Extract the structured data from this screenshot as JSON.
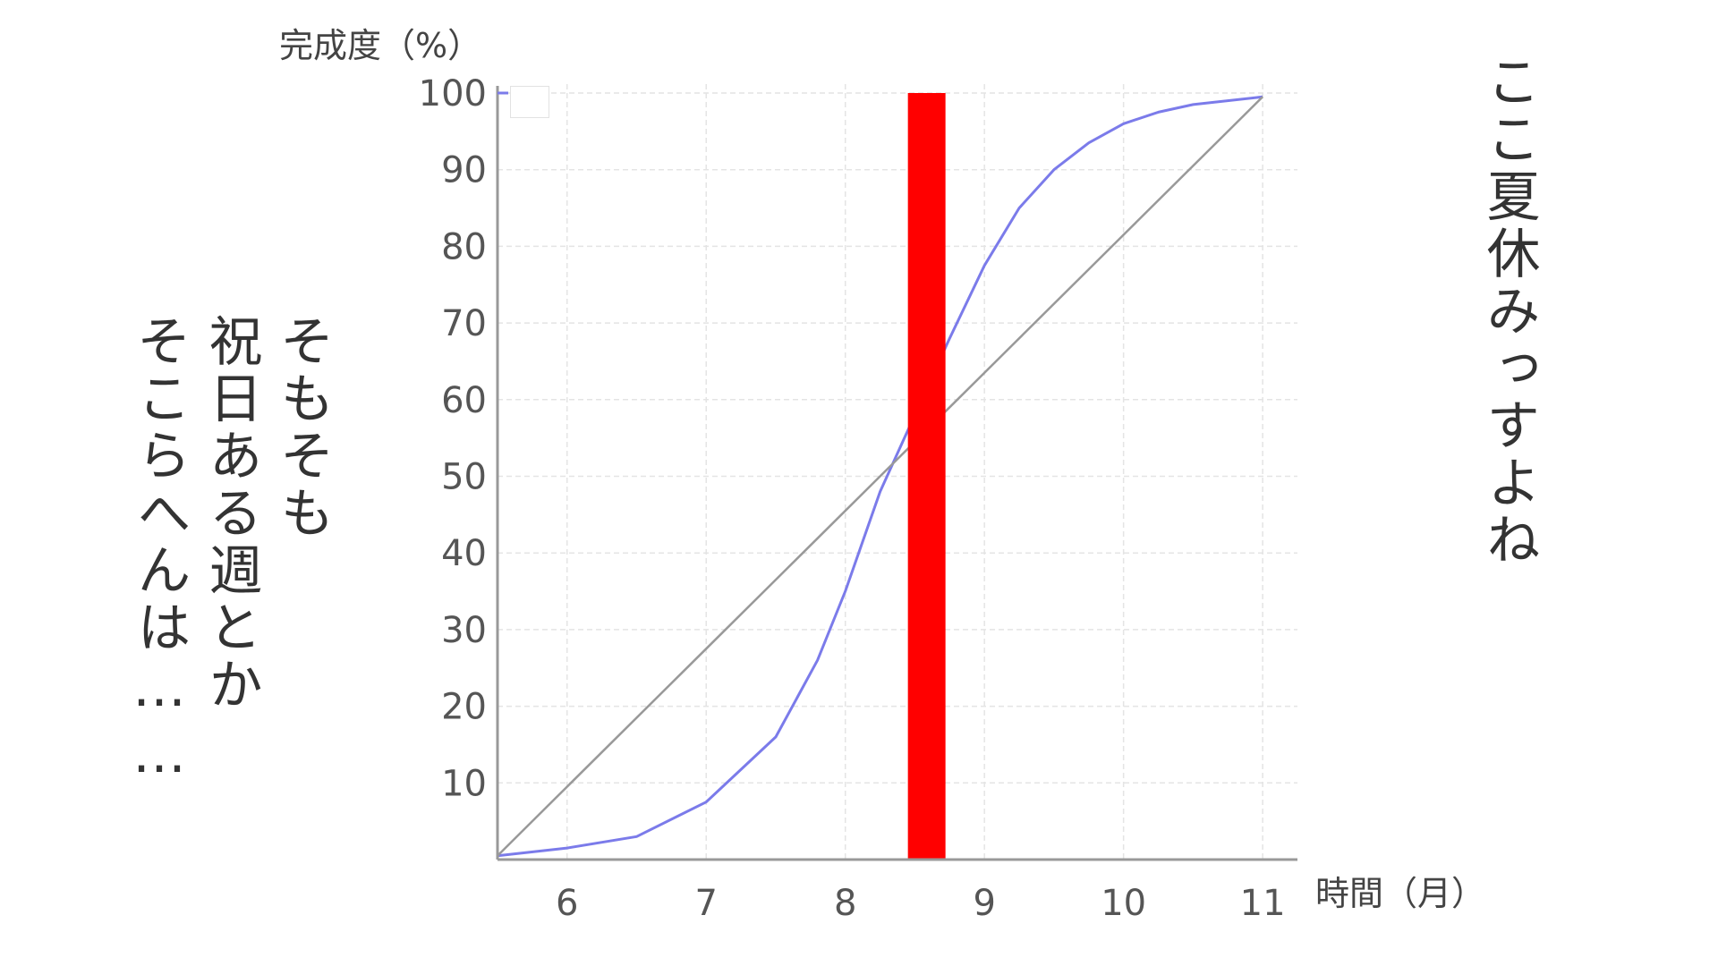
{
  "chart_data": {
    "type": "line",
    "title": "",
    "xlabel": "時間（月）",
    "ylabel": "完成度（%）",
    "xlim": [
      5.5,
      11.25
    ],
    "ylim": [
      0,
      100
    ],
    "x_ticks": [
      6,
      7,
      8,
      9,
      10,
      11
    ],
    "y_ticks": [
      10,
      20,
      30,
      40,
      50,
      60,
      70,
      80,
      90,
      100
    ],
    "grid": true,
    "legend": {
      "placement": "top-left",
      "text": "",
      "entries": []
    },
    "series": [
      {
        "color": "#7b7bea",
        "points": [
          [
            5.5,
            0.5
          ],
          [
            6.0,
            1.5
          ],
          [
            6.5,
            3.0
          ],
          [
            7.0,
            7.5
          ],
          [
            7.5,
            16.0
          ],
          [
            7.8,
            26.0
          ],
          [
            8.0,
            35.0
          ],
          [
            8.25,
            48.0
          ],
          [
            8.5,
            58.0
          ],
          [
            8.75,
            68.0
          ],
          [
            9.0,
            77.5
          ],
          [
            9.25,
            85.0
          ],
          [
            9.5,
            90.0
          ],
          [
            9.75,
            93.5
          ],
          [
            10.0,
            96.0
          ],
          [
            10.25,
            97.5
          ],
          [
            10.5,
            98.5
          ],
          [
            11.0,
            99.5
          ]
        ]
      },
      {
        "color": "#999999",
        "points": [
          [
            5.5,
            0.5
          ],
          [
            11.0,
            99.5
          ]
        ]
      }
    ],
    "highlight_band": {
      "x_start": 8.45,
      "x_end": 8.72,
      "y_top": 100,
      "color": "#ff0000"
    }
  },
  "notes": {
    "right": "ここ夏休みっすよね",
    "left_col1": "そもそも",
    "left_col2": "祝日ある週とか",
    "left_col3": "そこらへんは……"
  }
}
